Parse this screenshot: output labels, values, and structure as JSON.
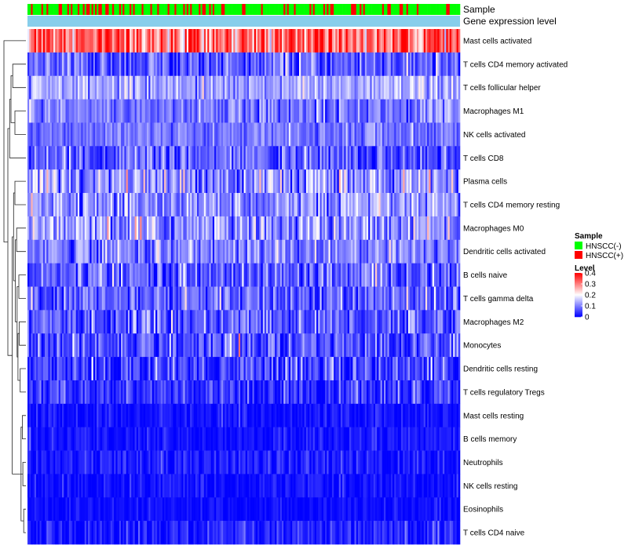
{
  "chart_data": {
    "type": "heatmap",
    "title": "",
    "n_samples": 250,
    "annotation_tracks": [
      {
        "name": "Sample",
        "kind": "categorical"
      },
      {
        "name": "Gene expression level",
        "kind": "constant",
        "color": "#87CEEB"
      }
    ],
    "sample_legend": {
      "title": "Sample",
      "entries": [
        {
          "label": "HNSCC(-)",
          "color": "#00FF00"
        },
        {
          "label": "HNSCC(+)",
          "color": "#FF0000"
        }
      ],
      "positive_fraction": 0.22
    },
    "colorbar": {
      "title": "Level",
      "colors": [
        "#0000FF",
        "#FFFFFF",
        "#FF0000"
      ],
      "range": [
        0,
        0.4
      ],
      "ticks": [
        0,
        0.1,
        0.2,
        0.3,
        0.4
      ],
      "tick_labels": [
        "0",
        "0.1",
        "0.2",
        "0.3",
        "0.4"
      ]
    },
    "rows": [
      {
        "label": "Mast cells activated",
        "mean": 0.32,
        "spread": 0.08
      },
      {
        "label": "T cells CD4 memory activated",
        "mean": 0.07,
        "spread": 0.05
      },
      {
        "label": "T cells follicular helper",
        "mean": 0.13,
        "spread": 0.04
      },
      {
        "label": "Macrophages M1",
        "mean": 0.09,
        "spread": 0.04
      },
      {
        "label": "NK cells activated",
        "mean": 0.09,
        "spread": 0.03
      },
      {
        "label": "T cells CD8",
        "mean": 0.07,
        "spread": 0.05
      },
      {
        "label": "Plasma cells",
        "mean": 0.11,
        "spread": 0.06
      },
      {
        "label": "T cells CD4 memory resting",
        "mean": 0.11,
        "spread": 0.05
      },
      {
        "label": "Macrophages M0",
        "mean": 0.11,
        "spread": 0.06
      },
      {
        "label": "Dendritic cells activated",
        "mean": 0.1,
        "spread": 0.05
      },
      {
        "label": "B cells naive",
        "mean": 0.07,
        "spread": 0.05
      },
      {
        "label": "T cells gamma delta",
        "mean": 0.07,
        "spread": 0.05
      },
      {
        "label": "Macrophages M2",
        "mean": 0.07,
        "spread": 0.05
      },
      {
        "label": "Monocytes",
        "mean": 0.06,
        "spread": 0.05
      },
      {
        "label": "Dendritic cells resting",
        "mean": 0.05,
        "spread": 0.05
      },
      {
        "label": "T cells regulatory  Tregs",
        "mean": 0.035,
        "spread": 0.04
      },
      {
        "label": "Mast cells resting",
        "mean": 0.012,
        "spread": 0.02
      },
      {
        "label": "B cells memory",
        "mean": 0.012,
        "spread": 0.02
      },
      {
        "label": "Neutrophils",
        "mean": 0.018,
        "spread": 0.025
      },
      {
        "label": "NK cells resting",
        "mean": 0.01,
        "spread": 0.02
      },
      {
        "label": "Eosinophils",
        "mean": 0.008,
        "spread": 0.015
      },
      {
        "label": "T cells CD4 naive",
        "mean": 0.018,
        "spread": 0.03
      }
    ],
    "row_dendrogram": {
      "merges": [
        [
          20,
          21,
          0.1
        ],
        [
          18,
          19,
          0.14
        ],
        [
          16,
          17,
          0.16
        ],
        [
          -1,
          -3,
          0.22
        ],
        [
          -2,
          -4,
          0.28
        ],
        [
          14,
          15,
          0.26
        ],
        [
          12,
          13,
          0.3
        ],
        [
          -6,
          -7,
          0.36
        ],
        [
          10,
          11,
          0.32
        ],
        [
          -9,
          -8,
          0.4
        ],
        [
          8,
          9,
          0.42
        ],
        [
          -11,
          -10,
          0.48
        ],
        [
          6,
          7,
          0.5
        ],
        [
          -13,
          -12,
          0.56
        ],
        [
          -14,
          -5,
          0.62
        ],
        [
          3,
          4,
          0.5
        ],
        [
          1,
          2,
          0.6
        ],
        [
          -16,
          -17,
          0.68
        ],
        [
          -18,
          5,
          0.74
        ],
        [
          -19,
          -15,
          0.82
        ],
        [
          0,
          -20,
          1.0
        ]
      ]
    }
  }
}
